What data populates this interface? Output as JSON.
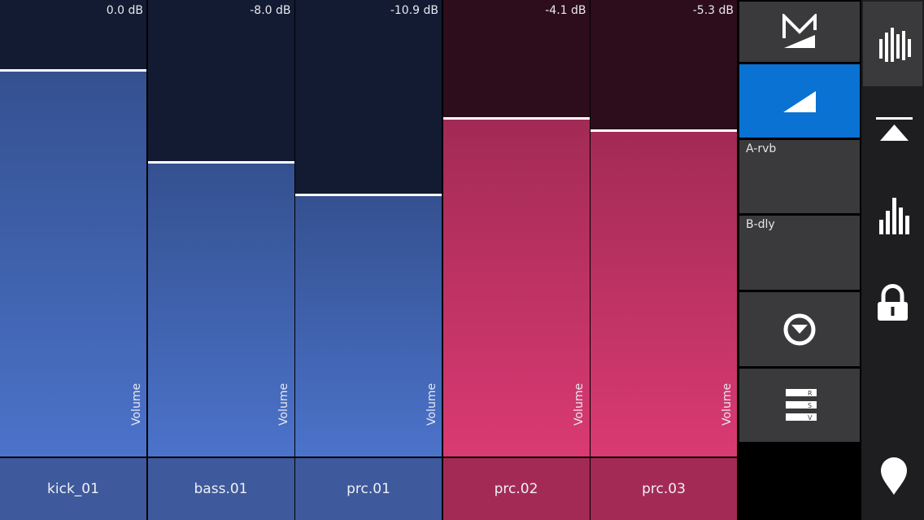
{
  "channels": [
    {
      "name": "kick_01",
      "db": "0.0 dB",
      "param": "Volume",
      "level": 0.848,
      "theme": "blue"
    },
    {
      "name": "bass.01",
      "db": "-8.0 dB",
      "param": "Volume",
      "level": 0.647,
      "theme": "blue"
    },
    {
      "name": "prc.01",
      "db": "-10.9 dB",
      "param": "Volume",
      "level": 0.575,
      "theme": "blue"
    },
    {
      "name": "prc.02",
      "db": "-4.1 dB",
      "param": "Volume",
      "level": 0.743,
      "theme": "pink"
    },
    {
      "name": "prc.03",
      "db": "-5.3 dB",
      "param": "Volume",
      "level": 0.716,
      "theme": "pink"
    }
  ],
  "panel": {
    "mode_logo_icon": "m-logo-icon",
    "volume_icon": "volume-ramp-icon",
    "send_a": "A-rvb",
    "send_b": "B-dly",
    "pan_icon": "pan-knob-icon",
    "rsv_icon": "rsv-menu-icon"
  },
  "sidebar": {
    "icons": [
      "mixer-icon",
      "eject-icon",
      "levels-icon",
      "lock-icon",
      "location-pin-icon"
    ]
  },
  "colors": {
    "blue_top": "#131b33",
    "blue_fill_top": "#34508f",
    "blue_fill_bottom": "#4b73ca",
    "blue_label": "#3e5a9c",
    "pink_top": "#2d0d1b",
    "pink_fill_top": "#a22a55",
    "pink_fill_bottom": "#d93a72",
    "pink_label": "#a42a56",
    "active": "#0a72d2",
    "button": "#3a3a3c"
  }
}
